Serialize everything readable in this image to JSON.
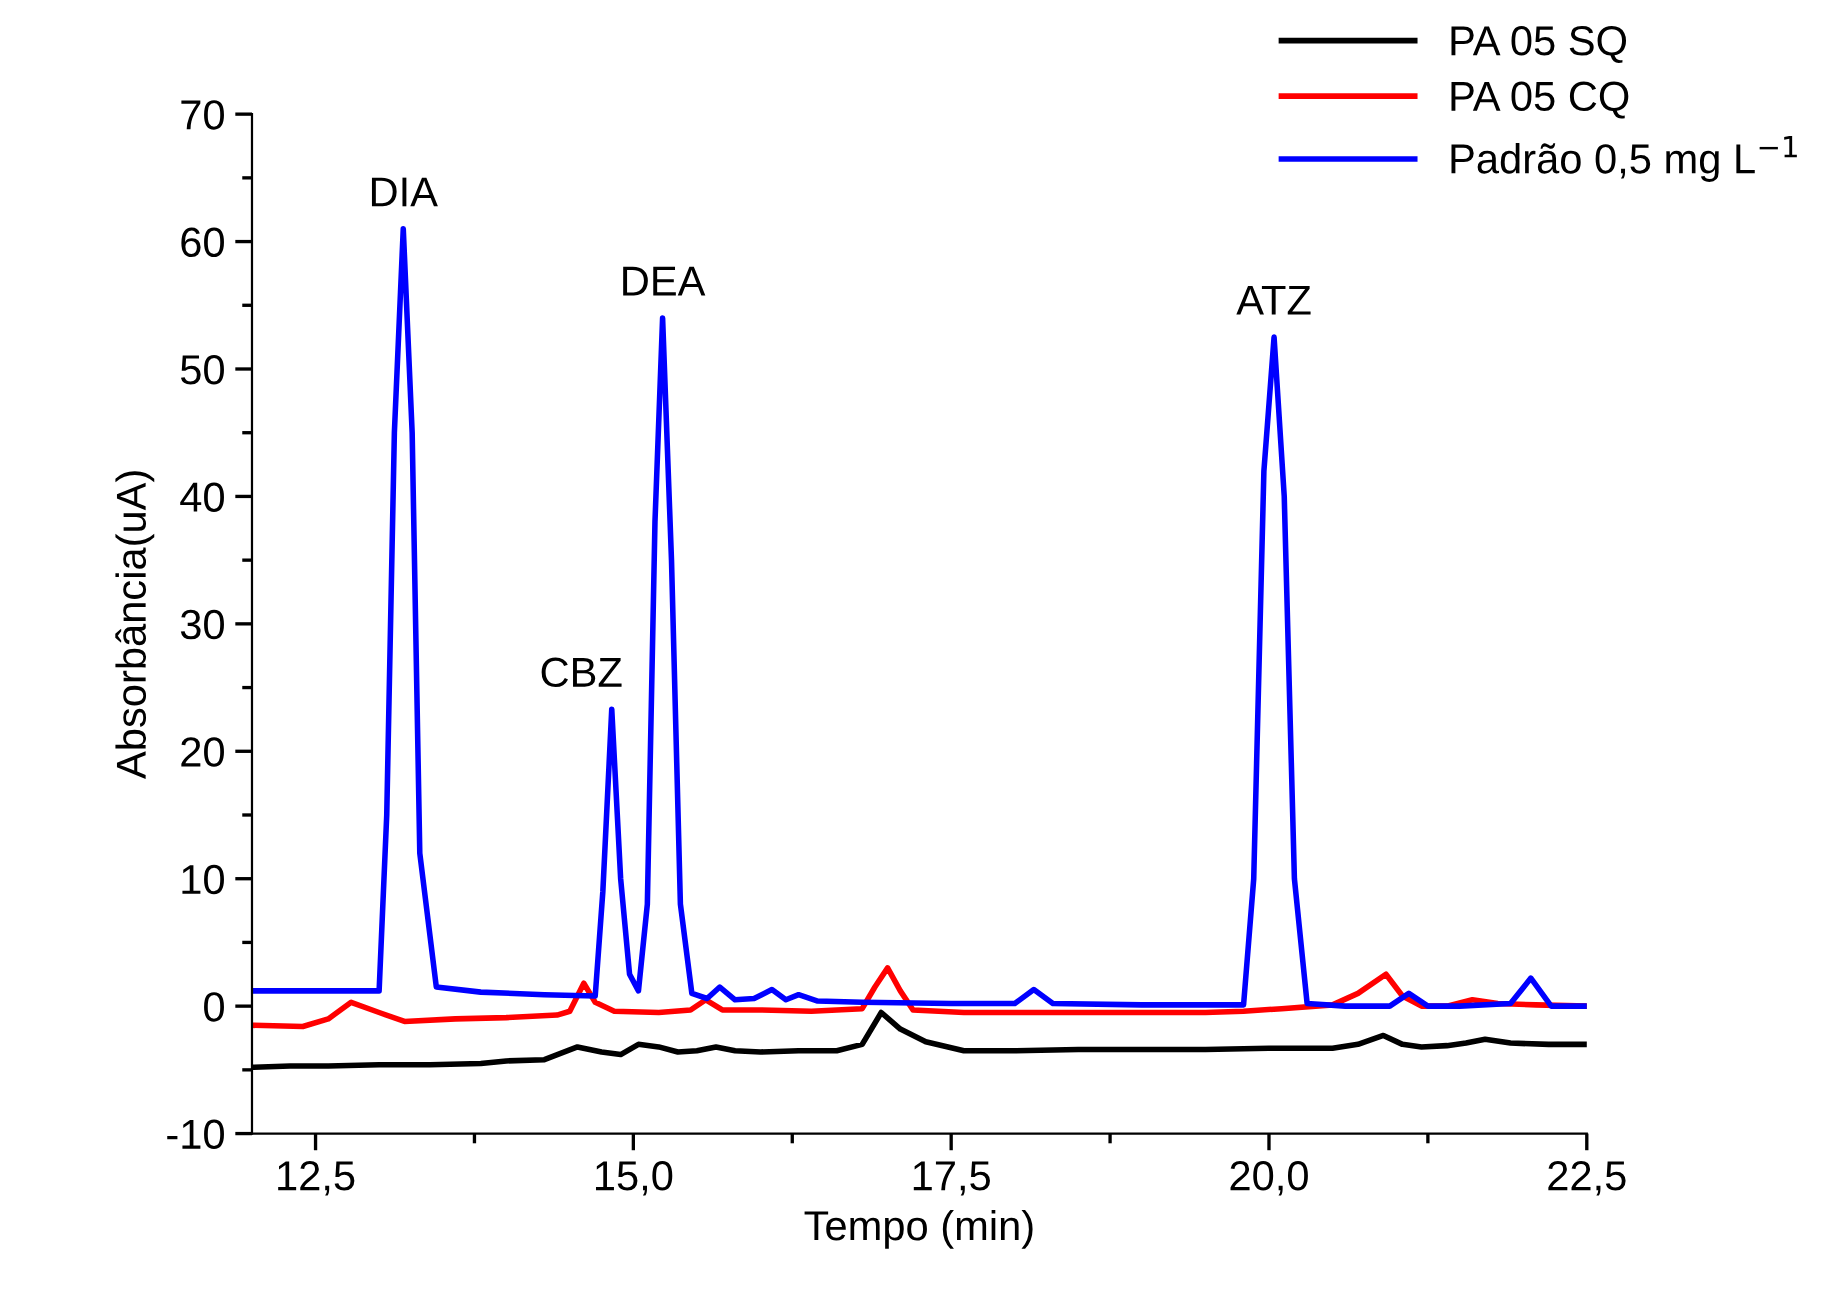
{
  "chart_data": {
    "type": "line",
    "xlabel": "Tempo (min)",
    "ylabel": "Absorbância(uA)",
    "xlim": [
      12,
      22.5
    ],
    "ylim": [
      -10,
      70
    ],
    "xticks": [
      {
        "value": 12.5,
        "label": "12,5"
      },
      {
        "value": 13.75,
        "label": null
      },
      {
        "value": 15,
        "label": "15,0"
      },
      {
        "value": 16.25,
        "label": null
      },
      {
        "value": 17.5,
        "label": "17,5"
      },
      {
        "value": 18.75,
        "label": null
      },
      {
        "value": 20,
        "label": "20,0"
      },
      {
        "value": 21.25,
        "label": null
      },
      {
        "value": 22.5,
        "label": "22,5"
      }
    ],
    "yticks": [
      -10,
      {
        "value": -5,
        "label": null
      },
      0,
      {
        "value": 5,
        "label": null
      },
      10,
      {
        "value": 15,
        "label": null
      },
      20,
      {
        "value": 25,
        "label": null
      },
      30,
      {
        "value": 35,
        "label": null
      },
      40,
      {
        "value": 45,
        "label": null
      },
      50,
      {
        "value": 55,
        "label": null
      },
      60,
      {
        "value": 65,
        "label": null
      },
      70
    ],
    "grid": false,
    "legend": "top right",
    "marker": "none",
    "line_style": "solid",
    "series": [
      {
        "name": "PA 05 SQ",
        "color": "#000000",
        "x": [
          12,
          12.3,
          12.6,
          13.0,
          13.4,
          13.8,
          14.0,
          14.3,
          14.56,
          14.75,
          14.9,
          15.04,
          15.2,
          15.35,
          15.5,
          15.65,
          15.8,
          16.0,
          16.3,
          16.6,
          16.8,
          16.95,
          17.1,
          17.3,
          17.6,
          18.0,
          18.5,
          19.0,
          19.5,
          20.0,
          20.5,
          20.7,
          20.9,
          21.05,
          21.2,
          21.4,
          21.55,
          21.7,
          21.9,
          22.2,
          22.5
        ],
        "values": [
          -4.8,
          -4.7,
          -4.7,
          -4.6,
          -4.6,
          -4.5,
          -4.3,
          -4.2,
          -3.2,
          -3.6,
          -3.8,
          -3.0,
          -3.2,
          -3.6,
          -3.5,
          -3.2,
          -3.5,
          -3.6,
          -3.5,
          -3.5,
          -3.0,
          -0.5,
          -1.8,
          -2.8,
          -3.5,
          -3.5,
          -3.4,
          -3.4,
          -3.4,
          -3.3,
          -3.3,
          -3.0,
          -2.3,
          -3.0,
          -3.2,
          -3.1,
          -2.9,
          -2.6,
          -2.9,
          -3.0,
          -3.0
        ]
      },
      {
        "name": "PA 05 CQ",
        "color": "#ff0000",
        "x": [
          12,
          12.4,
          12.6,
          12.78,
          13.0,
          13.2,
          13.6,
          14.0,
          14.4,
          14.5,
          14.61,
          14.7,
          14.85,
          15.2,
          15.45,
          15.57,
          15.7,
          16.0,
          16.4,
          16.8,
          16.9,
          17.0,
          17.1,
          17.2,
          17.6,
          18.0,
          18.5,
          19.0,
          19.5,
          19.8,
          20.1,
          20.5,
          20.7,
          20.92,
          21.05,
          21.2,
          21.4,
          21.6,
          21.8,
          22.1,
          22.5
        ],
        "values": [
          -1.5,
          -1.6,
          -1.0,
          0.3,
          -0.5,
          -1.2,
          -1.0,
          -0.9,
          -0.7,
          -0.4,
          1.8,
          0.3,
          -0.4,
          -0.5,
          -0.3,
          0.5,
          -0.3,
          -0.3,
          -0.4,
          -0.2,
          1.5,
          3.0,
          1.2,
          -0.3,
          -0.5,
          -0.5,
          -0.5,
          -0.5,
          -0.5,
          -0.4,
          -0.2,
          0.1,
          1.0,
          2.5,
          0.8,
          0.0,
          0.0,
          0.5,
          0.2,
          0.1,
          0.0
        ]
      },
      {
        "name": "Padrão 0,5 mg L$^{−1}$",
        "color": "#0000ff",
        "x": [
          12,
          12.5,
          13.0,
          13.06,
          13.12,
          13.19,
          13.26,
          13.32,
          13.45,
          13.8,
          14.3,
          14.7,
          14.76,
          14.83,
          14.9,
          14.97,
          15.04,
          15.11,
          15.17,
          15.23,
          15.3,
          15.37,
          15.46,
          15.58,
          15.68,
          15.8,
          15.95,
          16.09,
          16.2,
          16.3,
          16.45,
          16.8,
          17.5,
          18.0,
          18.15,
          18.3,
          19.0,
          19.8,
          19.88,
          19.96,
          20.04,
          20.12,
          20.2,
          20.3,
          20.6,
          20.95,
          21.1,
          21.25,
          21.5,
          21.9,
          22.06,
          22.22,
          22.5
        ],
        "values": [
          1.2,
          1.2,
          1.2,
          15.0,
          45.0,
          61.0,
          45.0,
          12.0,
          1.5,
          1.1,
          0.9,
          0.8,
          9.0,
          23.3,
          10.0,
          2.5,
          1.2,
          8.0,
          38.0,
          54.0,
          35.0,
          8.0,
          1.0,
          0.6,
          1.5,
          0.5,
          0.6,
          1.3,
          0.5,
          0.9,
          0.4,
          0.3,
          0.2,
          0.2,
          1.3,
          0.2,
          0.1,
          0.1,
          10.0,
          42.0,
          52.5,
          40.0,
          10.0,
          0.2,
          0.0,
          0.0,
          1.0,
          0.0,
          0.0,
          0.2,
          2.2,
          0.0,
          0.0
        ]
      }
    ],
    "annotations": [
      {
        "text": "DIA",
        "x": 13.19,
        "y": 61.0
      },
      {
        "text": "CBZ",
        "x": 14.83,
        "y": 23.3
      },
      {
        "text": "DEA",
        "x": 15.23,
        "y": 54.0
      },
      {
        "text": "ATZ",
        "x": 20.04,
        "y": 52.5
      }
    ]
  }
}
